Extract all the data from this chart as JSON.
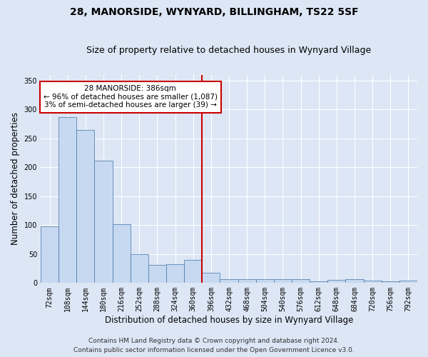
{
  "title": "28, MANORSIDE, WYNYARD, BILLINGHAM, TS22 5SF",
  "subtitle": "Size of property relative to detached houses in Wynyard Village",
  "xlabel": "Distribution of detached houses by size in Wynyard Village",
  "ylabel": "Number of detached properties",
  "footnote1": "Contains HM Land Registry data © Crown copyright and database right 2024.",
  "footnote2": "Contains public sector information licensed under the Open Government Licence v3.0.",
  "bar_color": "#c6d9f0",
  "bar_edge_color": "#4472a8",
  "vline_color": "#cc0000",
  "annotation_text": "28 MANORSIDE: 386sqm\n← 96% of detached houses are smaller (1,087)\n3% of semi-detached houses are larger (39) →",
  "annotation_box_color": "#cc0000",
  "annotation_fill": "#ffffff",
  "bins": [
    "72sqm",
    "108sqm",
    "144sqm",
    "180sqm",
    "216sqm",
    "252sqm",
    "288sqm",
    "324sqm",
    "360sqm",
    "396sqm",
    "432sqm",
    "468sqm",
    "504sqm",
    "540sqm",
    "576sqm",
    "612sqm",
    "648sqm",
    "684sqm",
    "720sqm",
    "756sqm",
    "792sqm"
  ],
  "values": [
    98,
    287,
    265,
    212,
    102,
    50,
    31,
    32,
    40,
    18,
    7,
    6,
    6,
    7,
    6,
    3,
    5,
    6,
    4,
    3,
    4
  ],
  "ylim": [
    0,
    360
  ],
  "yticks": [
    0,
    50,
    100,
    150,
    200,
    250,
    300,
    350
  ],
  "background_color": "#dce6f5",
  "plot_bg_color": "#dce6f5",
  "title_fontsize": 10,
  "subtitle_fontsize": 9,
  "axis_label_fontsize": 8.5,
  "tick_fontsize": 7,
  "footnote_fontsize": 6.5,
  "vline_bin_index": 9
}
